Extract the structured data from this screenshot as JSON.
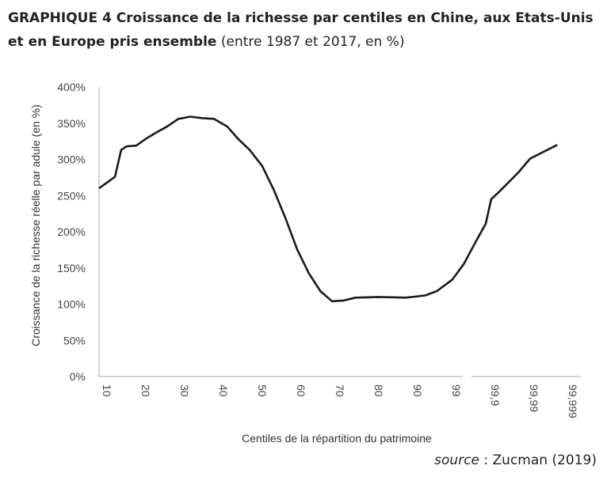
{
  "title": {
    "bold": "GRAPHIQUE 4  Croissance de la richesse par centiles en Chine, aux Etats-Unis et en Europe pris ensemble",
    "normal": " (entre 1987 et 2017, en %)"
  },
  "source": {
    "label": "source",
    "text": " : Zucman (2019)"
  },
  "chart_data": {
    "type": "line",
    "title": "Croissance de la richesse par centiles en Chine, aux Etats-Unis et en Europe pris ensemble (entre 1987 et 2017, en %)",
    "xlabel": "Centiles de la répartition du patrimoine",
    "ylabel": "Croissance de la richesse réelle par adule (en %)",
    "ylim": [
      0,
      400
    ],
    "yticks": [
      "0%",
      "50%",
      "100%",
      "150%",
      "200%",
      "250%",
      "300%",
      "350%",
      "400%"
    ],
    "ytick_values": [
      0,
      50,
      100,
      150,
      200,
      250,
      300,
      350,
      400
    ],
    "xticks": [
      "10",
      "20",
      "30",
      "40",
      "50",
      "60",
      "70",
      "80",
      "90",
      "99",
      "99,9",
      "99,99",
      "99,999"
    ],
    "x_note": "x values are category positions (0 = 10th centile ... 12 = 99,999)",
    "grid": false,
    "color": "#1a1a1a",
    "series": [
      {
        "name": "Croissance",
        "x": [
          0,
          0.41,
          0.57,
          0.71,
          0.96,
          1.22,
          1.47,
          1.74,
          2.04,
          2.35,
          2.65,
          2.96,
          3.31,
          3.57,
          3.88,
          4.2,
          4.5,
          4.8,
          5.1,
          5.4,
          5.7,
          6.0,
          6.3,
          6.6,
          7.2,
          7.9,
          8.4,
          8.7,
          9.1,
          9.4,
          9.7,
          9.96,
          10.1,
          10.3,
          10.8,
          11.1,
          11.8
        ],
        "values": [
          260,
          276,
          313,
          318,
          319,
          329,
          337,
          345,
          356,
          359,
          357,
          356,
          345,
          329,
          313,
          291,
          258,
          219,
          176,
          143,
          118,
          104,
          105,
          109,
          110,
          109,
          112,
          118,
          134,
          156,
          186,
          211,
          245,
          255,
          282,
          301,
          320
        ]
      }
    ]
  }
}
